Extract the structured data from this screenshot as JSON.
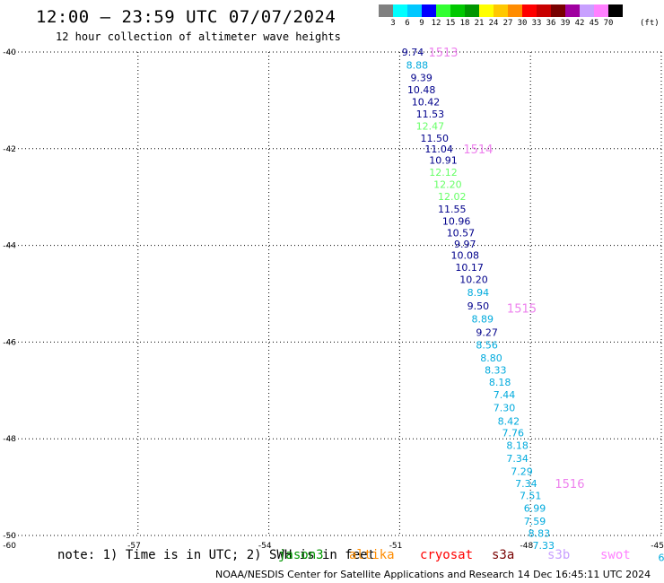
{
  "title": "12:00 – 23:59 UTC 07/07/2024",
  "subtitle": "12 hour collection of altimeter wave heights",
  "legend": {
    "colors": [
      "#808080",
      "#00ffff",
      "#00c8ff",
      "#0000ff",
      "#32ff32",
      "#00c800",
      "#009600",
      "#ffff00",
      "#ffc800",
      "#ff8c00",
      "#ff0000",
      "#c80000",
      "#780000",
      "#a000a0",
      "#c8a0ff",
      "#ff80ff",
      "#000000"
    ],
    "labels": [
      "3",
      "6",
      "9",
      "12",
      "15",
      "18",
      "21",
      "24",
      "27",
      "30",
      "33",
      "36",
      "39",
      "42",
      "45",
      "70"
    ],
    "unit": "(ft)"
  },
  "map": {
    "lon_range": [
      -60,
      -45
    ],
    "lat_range": [
      -50,
      -40
    ],
    "lon_ticks": [
      "-57",
      "-54",
      "-51",
      "-48",
      "-45"
    ],
    "lat_ticks": [
      "-40",
      "-42",
      "-44",
      "-46",
      "-48",
      "-50"
    ],
    "corner_lon": "-60"
  },
  "chart_data": {
    "type": "scatter",
    "description_units": "wave height (ft) at longitude/latitude",
    "points": [
      {
        "lon": -50.7,
        "lat": -40.0,
        "v": "9.74",
        "c": "#00008b"
      },
      {
        "lon": -50.6,
        "lat": -40.27,
        "v": "8.88",
        "c": "#00aadd"
      },
      {
        "lon": -50.5,
        "lat": -40.53,
        "v": "9.39",
        "c": "#00008b"
      },
      {
        "lon": -50.5,
        "lat": -40.78,
        "v": "10.48",
        "c": "#00008b"
      },
      {
        "lon": -50.4,
        "lat": -41.03,
        "v": "10.42",
        "c": "#00008b"
      },
      {
        "lon": -50.3,
        "lat": -41.28,
        "v": "11.53",
        "c": "#00008b"
      },
      {
        "lon": -50.3,
        "lat": -41.53,
        "v": "12.47",
        "c": "#66ff66"
      },
      {
        "lon": -50.2,
        "lat": -41.78,
        "v": "11.50",
        "c": "#00008b"
      },
      {
        "lon": -50.1,
        "lat": -42.0,
        "v": "11.04",
        "c": "#00008b"
      },
      {
        "lon": -50.0,
        "lat": -42.24,
        "v": "10.91",
        "c": "#00008b"
      },
      {
        "lon": -50.0,
        "lat": -42.49,
        "v": "12.12",
        "c": "#66ff66"
      },
      {
        "lon": -49.9,
        "lat": -42.74,
        "v": "12.20",
        "c": "#66ff66"
      },
      {
        "lon": -49.8,
        "lat": -42.99,
        "v": "12.02",
        "c": "#66ff66"
      },
      {
        "lon": -49.8,
        "lat": -43.25,
        "v": "11.55",
        "c": "#00008b"
      },
      {
        "lon": -49.7,
        "lat": -43.5,
        "v": "10.96",
        "c": "#00008b"
      },
      {
        "lon": -49.6,
        "lat": -43.74,
        "v": "10.57",
        "c": "#00008b"
      },
      {
        "lon": -49.5,
        "lat": -43.97,
        "v": "9.97",
        "c": "#00008b"
      },
      {
        "lon": -49.5,
        "lat": -44.2,
        "v": "10.08",
        "c": "#00008b"
      },
      {
        "lon": -49.4,
        "lat": -44.45,
        "v": "10.17",
        "c": "#00008b"
      },
      {
        "lon": -49.3,
        "lat": -44.7,
        "v": "10.20",
        "c": "#00008b"
      },
      {
        "lon": -49.2,
        "lat": -44.97,
        "v": "8.94",
        "c": "#00aadd"
      },
      {
        "lon": -49.2,
        "lat": -45.25,
        "v": "9.50",
        "c": "#00008b"
      },
      {
        "lon": -49.1,
        "lat": -45.52,
        "v": "8.89",
        "c": "#00aadd"
      },
      {
        "lon": -49.0,
        "lat": -45.8,
        "v": "9.27",
        "c": "#00008b"
      },
      {
        "lon": -49.0,
        "lat": -46.06,
        "v": "8.56",
        "c": "#00aadd"
      },
      {
        "lon": -48.9,
        "lat": -46.33,
        "v": "8.80",
        "c": "#00aadd"
      },
      {
        "lon": -48.8,
        "lat": -46.58,
        "v": "8.33",
        "c": "#00aadd"
      },
      {
        "lon": -48.7,
        "lat": -46.83,
        "v": "8.18",
        "c": "#00aadd"
      },
      {
        "lon": -48.6,
        "lat": -47.09,
        "v": "7.44",
        "c": "#00aadd"
      },
      {
        "lon": -48.6,
        "lat": -47.36,
        "v": "7.30",
        "c": "#00aadd"
      },
      {
        "lon": -48.5,
        "lat": -47.63,
        "v": "8.42",
        "c": "#00aadd"
      },
      {
        "lon": -48.4,
        "lat": -47.88,
        "v": "7.76",
        "c": "#00aadd"
      },
      {
        "lon": -48.3,
        "lat": -48.14,
        "v": "8.18",
        "c": "#00aadd"
      },
      {
        "lon": -48.3,
        "lat": -48.4,
        "v": "7.34",
        "c": "#00aadd"
      },
      {
        "lon": -48.2,
        "lat": -48.67,
        "v": "7.29",
        "c": "#00aadd"
      },
      {
        "lon": -48.1,
        "lat": -48.92,
        "v": "7.34",
        "c": "#00aadd"
      },
      {
        "lon": -48.0,
        "lat": -49.17,
        "v": "7.51",
        "c": "#00aadd"
      },
      {
        "lon": -47.9,
        "lat": -49.43,
        "v": "6.99",
        "c": "#00aadd"
      },
      {
        "lon": -47.9,
        "lat": -49.7,
        "v": "7.59",
        "c": "#00aadd"
      },
      {
        "lon": -47.8,
        "lat": -49.95,
        "v": "8.83",
        "c": "#00aadd"
      },
      {
        "lon": -47.7,
        "lat": -50.2,
        "v": "7.33",
        "c": "#00aadd"
      },
      {
        "lon": -45.0,
        "lat": -50.45,
        "v": "6",
        "c": "#00aadd"
      }
    ],
    "time_tags": [
      {
        "lon": -50.0,
        "lat": -40.0,
        "text": "1513"
      },
      {
        "lon": -49.2,
        "lat": -42.0,
        "text": "1514"
      },
      {
        "lon": -48.2,
        "lat": -45.3,
        "text": "1515"
      },
      {
        "lon": -47.1,
        "lat": -48.92,
        "text": "1516"
      }
    ]
  },
  "note": "note:  1) Time is in UTC;  2) SWH is in feet",
  "satellites": [
    {
      "name": "jason3",
      "color": "#009600"
    },
    {
      "name": "altika",
      "color": "#ff8c00"
    },
    {
      "name": "cryosat",
      "color": "#ff0000"
    },
    {
      "name": "s3a",
      "color": "#780000"
    },
    {
      "name": "s3b",
      "color": "#c8a0ff"
    },
    {
      "name": "swot",
      "color": "#ff80ff"
    }
  ],
  "footer": "NOAA/NESDIS Center for Satellite Applications and Research    14 Dec 16:45:11 UTC 2024"
}
